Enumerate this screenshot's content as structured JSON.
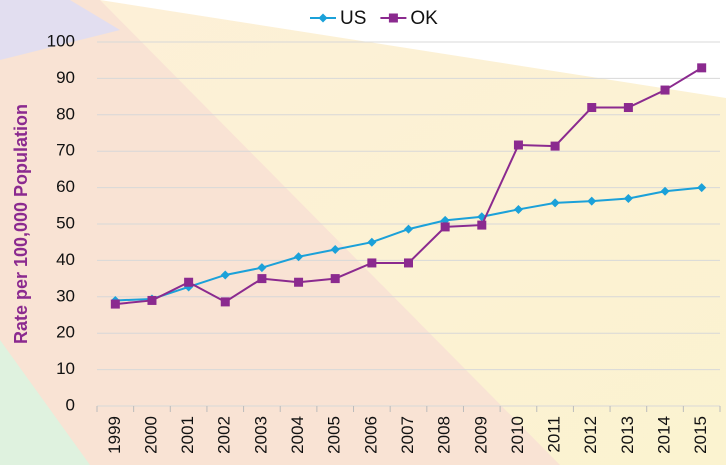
{
  "chart_data": {
    "type": "line",
    "categories": [
      "1999",
      "2000",
      "2001",
      "2002",
      "2003",
      "2004",
      "2005",
      "2006",
      "2007",
      "2008",
      "2009",
      "2010",
      "2011",
      "2012",
      "2013",
      "2014",
      "2015"
    ],
    "series": [
      {
        "name": "US",
        "color": "#1ba1d9",
        "marker": "diamond",
        "values": [
          29,
          29.4,
          32.7,
          36,
          38,
          41,
          43,
          45,
          48.6,
          51,
          52,
          54,
          55.8,
          56.3,
          57,
          59,
          60
        ]
      },
      {
        "name": "OK",
        "color": "#8b2a8f",
        "marker": "square",
        "values": [
          28,
          29,
          34,
          28.6,
          35,
          34,
          35,
          39.3,
          39.3,
          49.2,
          49.7,
          71.7,
          71.4,
          82,
          82,
          86.8,
          92.9
        ]
      }
    ],
    "y_label": "Rate per 100,000 Population",
    "ylim": [
      0,
      100
    ],
    "yticks": [
      0,
      10,
      20,
      30,
      40,
      50,
      60,
      70,
      80,
      90,
      100
    ],
    "grid": true,
    "legend": "top"
  }
}
